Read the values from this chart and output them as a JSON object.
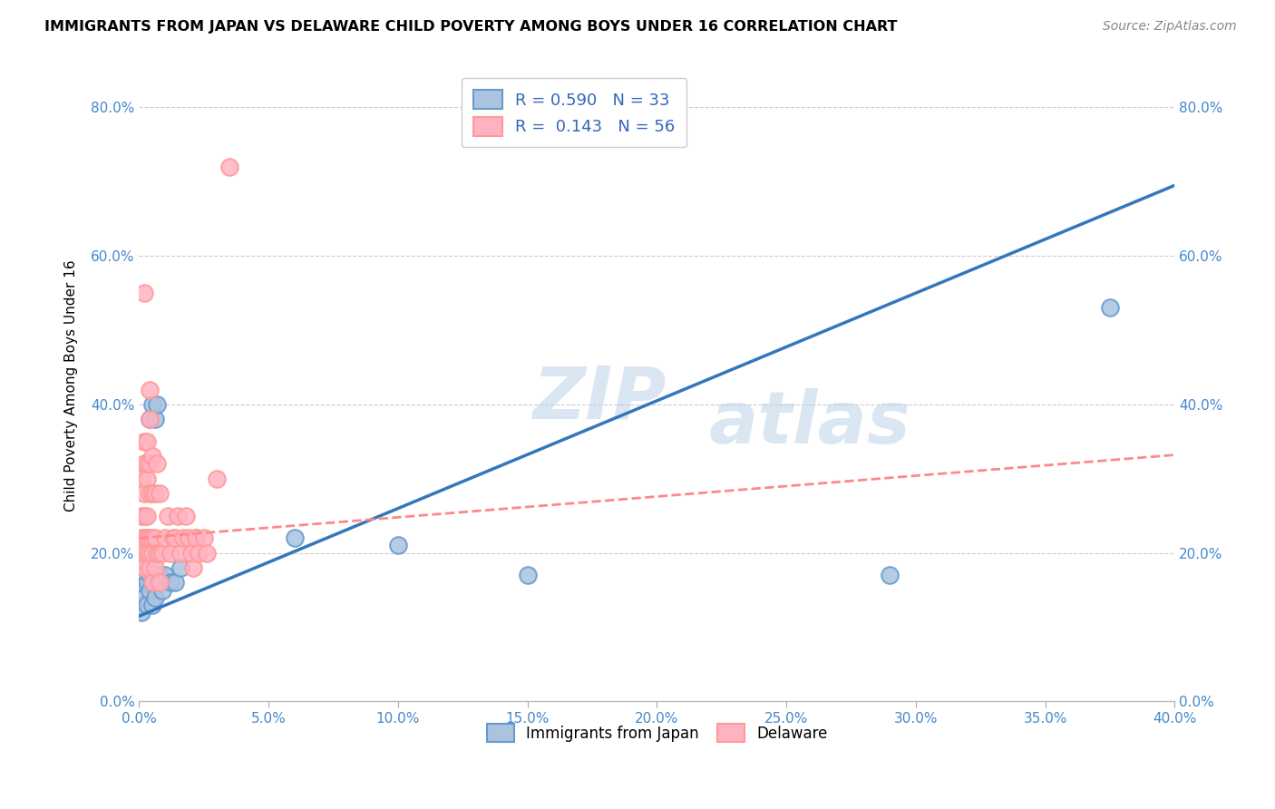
{
  "title": "IMMIGRANTS FROM JAPAN VS DELAWARE CHILD POVERTY AMONG BOYS UNDER 16 CORRELATION CHART",
  "source": "Source: ZipAtlas.com",
  "ylabel": "Child Poverty Among Boys Under 16",
  "xlabel": "",
  "xlim": [
    0.0,
    0.4
  ],
  "ylim": [
    0.0,
    0.85
  ],
  "xticks": [
    0.0,
    0.05,
    0.1,
    0.15,
    0.2,
    0.25,
    0.3,
    0.35,
    0.4
  ],
  "yticks": [
    0.0,
    0.2,
    0.4,
    0.6,
    0.8
  ],
  "watermark_top": "ZIP",
  "watermark_bot": "atlas",
  "legend_line1": "R = 0.590   N = 33",
  "legend_line2": "R =  0.143   N = 56",
  "blue_color": "#6699CC",
  "pink_color": "#FF9999",
  "blue_fill": "#AAC4E0",
  "pink_fill": "#FFB3C1",
  "line_blue": "#3377BB",
  "line_pink": "#FF8888",
  "japan_x": [
    0.0005,
    0.001,
    0.001,
    0.002,
    0.002,
    0.002,
    0.003,
    0.003,
    0.003,
    0.003,
    0.004,
    0.004,
    0.004,
    0.004,
    0.005,
    0.005,
    0.005,
    0.006,
    0.006,
    0.007,
    0.007,
    0.008,
    0.009,
    0.01,
    0.012,
    0.014,
    0.016,
    0.022,
    0.06,
    0.1,
    0.15,
    0.29,
    0.375
  ],
  "japan_y": [
    0.13,
    0.12,
    0.16,
    0.14,
    0.17,
    0.19,
    0.13,
    0.16,
    0.2,
    0.22,
    0.15,
    0.17,
    0.2,
    0.38,
    0.13,
    0.16,
    0.4,
    0.14,
    0.38,
    0.16,
    0.4,
    0.17,
    0.15,
    0.17,
    0.16,
    0.16,
    0.18,
    0.22,
    0.22,
    0.21,
    0.17,
    0.17,
    0.53
  ],
  "delaware_x": [
    0.0005,
    0.001,
    0.001,
    0.001,
    0.002,
    0.002,
    0.002,
    0.002,
    0.002,
    0.002,
    0.002,
    0.003,
    0.003,
    0.003,
    0.003,
    0.003,
    0.003,
    0.004,
    0.004,
    0.004,
    0.004,
    0.004,
    0.004,
    0.004,
    0.005,
    0.005,
    0.005,
    0.005,
    0.005,
    0.006,
    0.006,
    0.006,
    0.007,
    0.007,
    0.008,
    0.008,
    0.008,
    0.009,
    0.01,
    0.011,
    0.012,
    0.013,
    0.014,
    0.015,
    0.016,
    0.017,
    0.018,
    0.019,
    0.02,
    0.021,
    0.022,
    0.023,
    0.025,
    0.026,
    0.03,
    0.035
  ],
  "delaware_y": [
    0.2,
    0.22,
    0.25,
    0.3,
    0.18,
    0.22,
    0.25,
    0.28,
    0.32,
    0.35,
    0.55,
    0.2,
    0.22,
    0.25,
    0.3,
    0.32,
    0.35,
    0.18,
    0.2,
    0.22,
    0.28,
    0.32,
    0.38,
    0.42,
    0.16,
    0.2,
    0.22,
    0.28,
    0.33,
    0.18,
    0.22,
    0.28,
    0.2,
    0.32,
    0.16,
    0.2,
    0.28,
    0.2,
    0.22,
    0.25,
    0.2,
    0.22,
    0.22,
    0.25,
    0.2,
    0.22,
    0.25,
    0.22,
    0.2,
    0.18,
    0.22,
    0.2,
    0.22,
    0.2,
    0.3,
    0.72
  ],
  "blue_slope": 1.45,
  "blue_intercept": 0.115,
  "pink_slope": 0.28,
  "pink_intercept": 0.22
}
